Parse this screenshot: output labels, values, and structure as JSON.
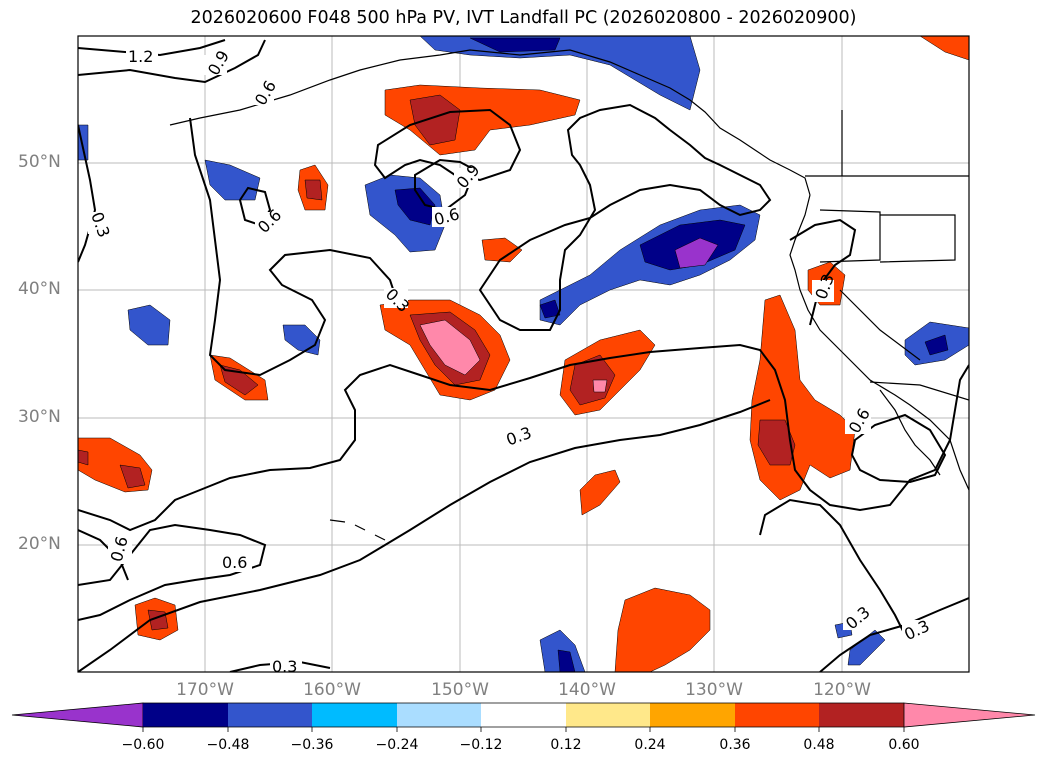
{
  "title": "2026020600 F048 500 hPa PV, IVT Landfall PC (2026020800 - 2026020900)",
  "lat_labels": [
    "50°N",
    "40°N",
    "30°N",
    "20°N"
  ],
  "lon_labels": [
    "170°W",
    "160°W",
    "150°W",
    "140°W",
    "130°W",
    "120°W"
  ],
  "contour_labels": [
    "1.2",
    "0.9",
    "0.6",
    "0.3",
    "0.6",
    "0.9",
    "0.6",
    "0.3",
    "0.3",
    "0.3",
    "0.6",
    "0.6",
    "0.6",
    "0.3",
    "0.3",
    "0.3"
  ],
  "colorbar": {
    "ticks": [
      "−0.60",
      "−0.48",
      "−0.36",
      "−0.24",
      "−0.12",
      "0.12",
      "0.24",
      "0.36",
      "0.48",
      "0.60"
    ],
    "colors": [
      "#9933cc",
      "#000088",
      "#3355cc",
      "#00bbff",
      "#aaddff",
      "#ffffff",
      "#ffe88a",
      "#ffa500",
      "#ff4500",
      "#b22222",
      "#ff88aa"
    ]
  },
  "map_extent": {
    "lon_min": -180,
    "lon_max": -110,
    "lat_min": 10,
    "lat_max": 60
  }
}
